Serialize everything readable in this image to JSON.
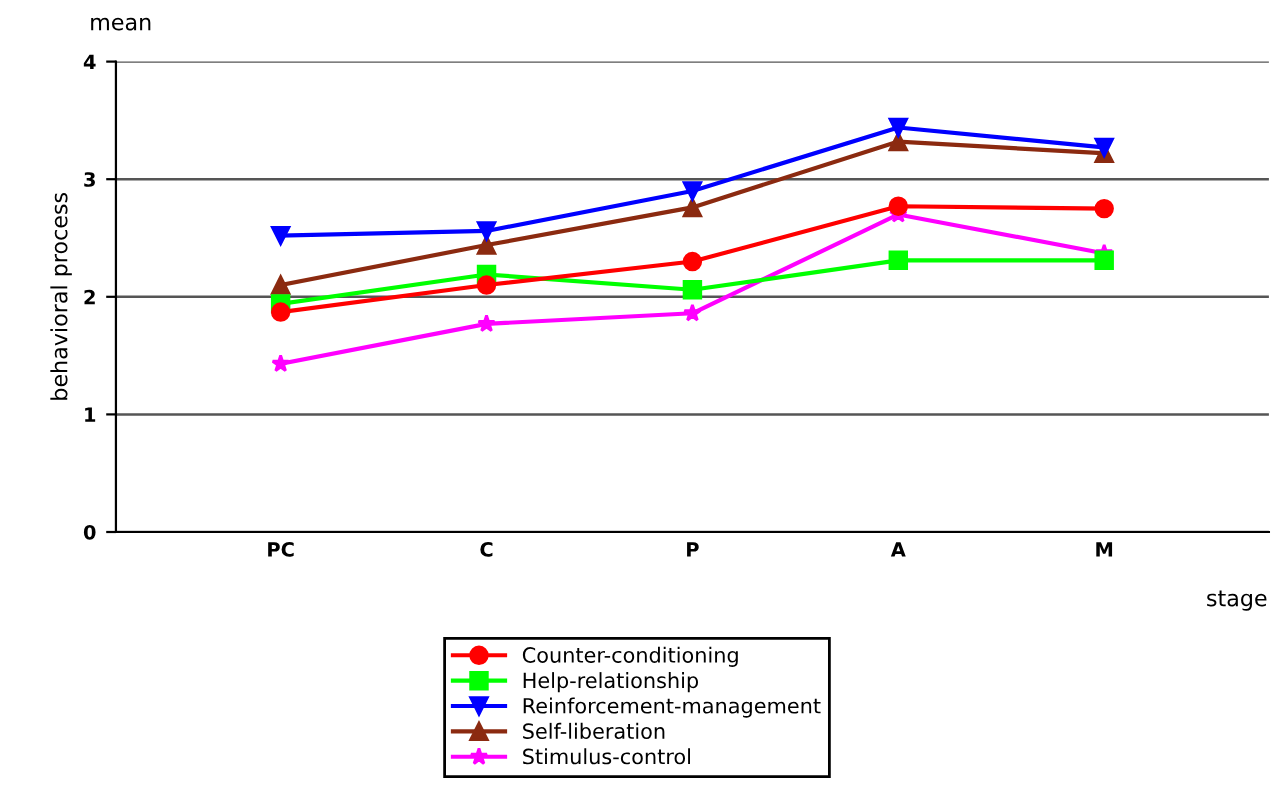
{
  "chart_data": {
    "type": "line",
    "xlabel": "stage",
    "ylabel": "behavioral process",
    "annotations": [
      "mean"
    ],
    "categories": [
      "PC",
      "C",
      "P",
      "A",
      "M"
    ],
    "series": [
      {
        "name": "Counter-conditioning",
        "color": "#ff0000",
        "marker": "circle",
        "values": [
          1.87,
          2.1,
          2.3,
          2.77,
          2.75
        ]
      },
      {
        "name": "Help-relationship",
        "color": "#00ff00",
        "marker": "square",
        "values": [
          1.94,
          2.19,
          2.06,
          2.31,
          2.31
        ]
      },
      {
        "name": "Reinforcement-management",
        "color": "#0000ff",
        "marker": "triangle_down",
        "values": [
          2.52,
          2.56,
          2.9,
          3.44,
          3.27
        ]
      },
      {
        "name": "Self-liberation",
        "color": "#8b2a10",
        "marker": "triangle",
        "values": [
          2.1,
          2.44,
          2.76,
          3.32,
          3.22
        ]
      },
      {
        "name": "Stimulus-control",
        "color": "#ff00ff",
        "marker": "star",
        "values": [
          1.43,
          1.77,
          1.86,
          2.7,
          2.37
        ]
      }
    ],
    "ylim": [
      0,
      4
    ],
    "yticks": [
      0,
      1,
      2,
      3,
      4
    ],
    "grid": "y",
    "legend": "bottom",
    "line_style": "solid"
  }
}
